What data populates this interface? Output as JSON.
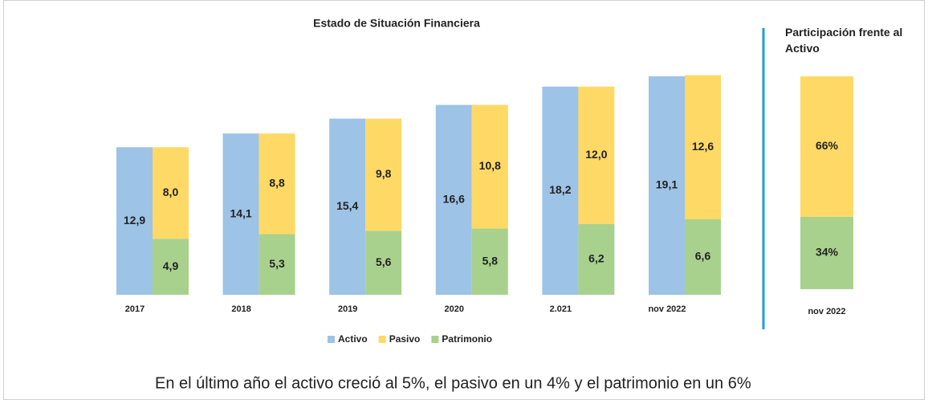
{
  "chart_data": [
    {
      "type": "bar",
      "title": "Estado de Situación Financiera",
      "categories": [
        "2017",
        "2018",
        "2019",
        "2020",
        "2.021",
        "nov 2022"
      ],
      "series": [
        {
          "name": "Activo",
          "color": "#9dc3e6",
          "values": [
            12.9,
            14.1,
            15.4,
            16.6,
            18.2,
            19.1
          ],
          "value_labels": [
            "12,9",
            "14,1",
            "15,4",
            "16,6",
            "18,2",
            "19,1"
          ]
        },
        {
          "name": "Pasivo",
          "color": "#ffd966",
          "values": [
            8.0,
            8.8,
            9.8,
            10.8,
            12.0,
            12.6
          ],
          "value_labels": [
            "8,0",
            "8,8",
            "9,8",
            "10,8",
            "12,0",
            "12,6"
          ]
        },
        {
          "name": "Patrimonio",
          "color": "#a9d18e",
          "values": [
            4.9,
            5.3,
            5.6,
            5.8,
            6.2,
            6.6
          ],
          "value_labels": [
            "4,9",
            "5,3",
            "5,6",
            "5,8",
            "6,2",
            "6,6"
          ]
        }
      ]
    },
    {
      "type": "bar",
      "title": "Participación frente al Activo",
      "categories": [
        "nov 2022"
      ],
      "series": [
        {
          "color": "#ffd966",
          "values": [
            66
          ],
          "value_labels": [
            "66%"
          ]
        },
        {
          "color": "#a9d18e",
          "values": [
            34
          ],
          "value_labels": [
            "34%"
          ]
        }
      ]
    }
  ],
  "note": "En el último año el activo creció al 5%, el pasivo en un 4% y el patrimonio en un 6%"
}
